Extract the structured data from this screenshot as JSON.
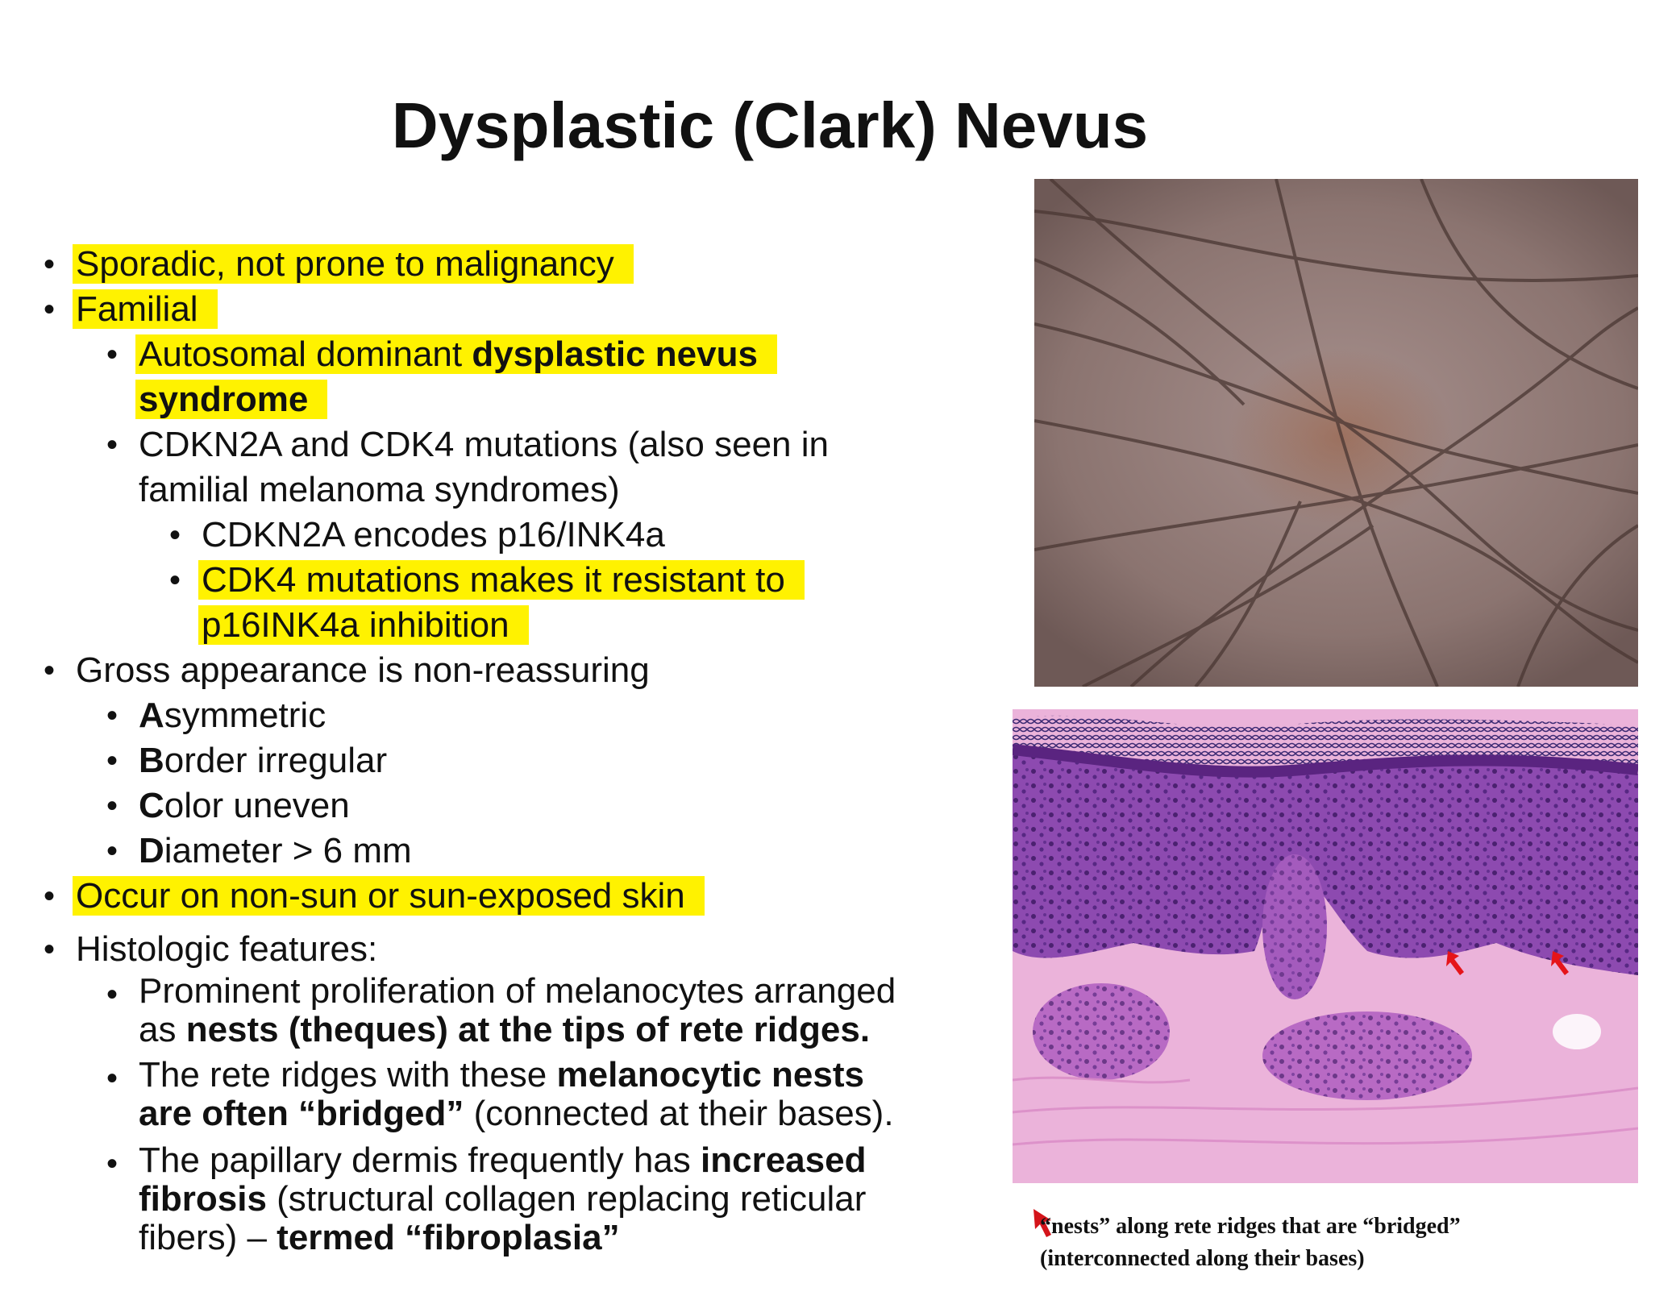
{
  "slide": {
    "title": "Dysplastic (Clark) Nevus"
  },
  "bullets": {
    "sporadic": "Sporadic, not prone to malignancy",
    "familial": "Familial",
    "autosomal_pre": "Autosomal dominant ",
    "autosomal_bold1": "dysplastic nevus",
    "autosomal_bold2": "syndrome",
    "cdkn_line1": "CDKN2A and CDK4 mutations (also seen in",
    "cdkn_line2": "familial melanoma syndromes)",
    "encodes": "CDKN2A encodes p16/INK4a",
    "cdk4_line1": "CDK4 mutations makes it  resistant to",
    "cdk4_line2": "p16INK4a inhibition",
    "gross": "Gross appearance is non-reassuring",
    "asym_letter": "A",
    "asym_rest": "symmetric",
    "border_letter": "B",
    "border_rest": "order irregular",
    "color_letter": "C",
    "color_rest": "olor uneven",
    "diam_letter": "D",
    "diam_rest": "iameter > 6 mm",
    "occur": "Occur on non-sun or sun-exposed skin",
    "histo": "Histologic features:",
    "prom_line1": "Prominent proliferation of melanocytes arranged",
    "prom_line2_pre": "as ",
    "prom_line2_bold": "nests (theques) at the tips of rete ridges.",
    "rete_line1_pre": "The rete ridges with these ",
    "rete_line1_bold": "melanocytic nests",
    "rete_line2_bold": "are often “bridged”",
    "rete_line2_rest": " (connected at their bases).",
    "pap_line1_pre": "The papillary dermis frequently has ",
    "pap_line1_bold": "increased",
    "pap_line2_bold": "fibrosis",
    "pap_line2_rest": " (structural collagen replacing reticular",
    "pap_line3_pre": "fibers) – ",
    "pap_line3_bold": "termed “fibroplasia”"
  },
  "figure": {
    "caption_line1": "“nests” along rete ridges that are “bridged”",
    "caption_line2": "(interconnected along their bases)"
  },
  "colors": {
    "highlight": "#fff200",
    "arrow": "#d4141a",
    "stain_pink": "#e6a6d2",
    "stain_purple": "#7b3a9a"
  }
}
